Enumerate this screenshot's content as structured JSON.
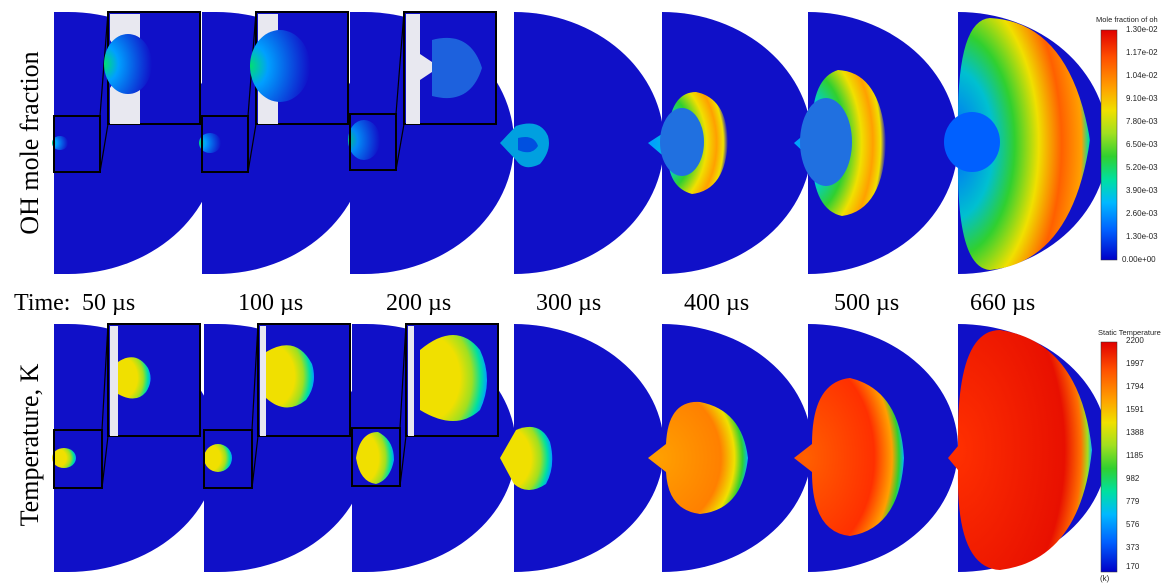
{
  "row_labels": {
    "oh": "OH mole fraction",
    "temperature": "Temperature, K"
  },
  "times": {
    "prefix": "Time:",
    "values": [
      "50 µs",
      "100 µs",
      "200 µs",
      "300 µs",
      "400 µs",
      "500 µs",
      "660 µs"
    ]
  },
  "legend_oh": {
    "title": "Mole fraction of oh",
    "ticks": [
      "1.30e-02",
      "1.17e-02",
      "1.04e-02",
      "9.10e-03",
      "7.80e-03",
      "6.50e-03",
      "5.20e-03",
      "3.90e-03",
      "2.60e-03",
      "1.30e-03",
      "0.00e+00"
    ]
  },
  "legend_temp": {
    "title": "Static Temperature",
    "ticks": [
      "2200",
      "1997",
      "1794",
      "1591",
      "1388",
      "1185",
      "982",
      "779",
      "576",
      "373",
      "170"
    ],
    "unit": "(k)"
  },
  "colors": {
    "background": "#1010c8",
    "scale": [
      "#0000c8",
      "#0060ff",
      "#00b8ff",
      "#00e0a0",
      "#30d030",
      "#a0e020",
      "#f0e000",
      "#ffa000",
      "#ff5000",
      "#e00000"
    ]
  }
}
